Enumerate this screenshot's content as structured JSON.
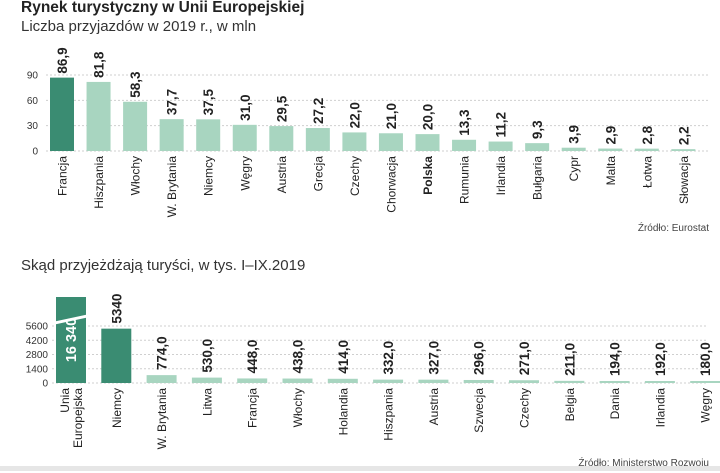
{
  "title": "Rynek turystyczny w Unii Europejskiej",
  "subtitle": "Liczba przyjazdów w 2019 r., w mln",
  "source1": "Źródło: Eurostat",
  "subtitle2": "Skąd przyjeżdżają turyści, w tys. I–IX.2019",
  "source2": "Źródło: Ministerstwo Rozwoju",
  "colors": {
    "highlight": "#3a8c72",
    "bar": "#a8d5c0",
    "grid": "#cfcfcf",
    "axis_text": "#333333"
  },
  "chart_data": [
    {
      "type": "bar",
      "categories": [
        "Francja",
        "Hiszpania",
        "Włochy",
        "W. Brytania",
        "Niemcy",
        "Węgry",
        "Austria",
        "Grecja",
        "Czechy",
        "Chorwacja",
        "Polska",
        "Rumunia",
        "Irlandia",
        "Bułgaria",
        "Cypr",
        "Malta",
        "Łotwa",
        "Słowacja"
      ],
      "values": [
        86.9,
        81.8,
        58.3,
        37.7,
        37.5,
        31.0,
        29.5,
        27.2,
        22.0,
        21.0,
        20.0,
        13.3,
        11.2,
        9.3,
        3.9,
        2.9,
        2.8,
        2.2
      ],
      "value_labels": [
        "86,9",
        "81,8",
        "58,3",
        "37,7",
        "37,5",
        "31,0",
        "29,5",
        "27,2",
        "22,0",
        "21,0",
        "20,0",
        "13,3",
        "11,2",
        "9,3",
        "3,9",
        "2,9",
        "2,8",
        "2,2"
      ],
      "yticks": [
        "90",
        "60",
        "30",
        "0"
      ],
      "ytick_values": [
        90,
        60,
        30,
        0
      ],
      "ylim": [
        0,
        90
      ],
      "highlight_index": 0,
      "bold_category": "Polska",
      "grid": true
    },
    {
      "type": "bar",
      "categories": [
        "Unia Europejska",
        "Niemcy",
        "W. Brytania",
        "Litwa",
        "Francja",
        "Włochy",
        "Holandia",
        "Hiszpania",
        "Austria",
        "Szwecja",
        "Czechy",
        "Belgia",
        "Dania",
        "Irlandia",
        "Węgry"
      ],
      "category_lines": [
        [
          "Unia",
          "Europejska"
        ],
        [
          "Niemcy"
        ],
        [
          "W. Brytania"
        ],
        [
          "Litwa"
        ],
        [
          "Francja"
        ],
        [
          "Włochy"
        ],
        [
          "Holandia"
        ],
        [
          "Hiszpania"
        ],
        [
          "Austria"
        ],
        [
          "Szwecja"
        ],
        [
          "Czechy"
        ],
        [
          "Belgia"
        ],
        [
          "Dania"
        ],
        [
          "Irlandia"
        ],
        [
          "Węgry"
        ]
      ],
      "values": [
        16340,
        5340,
        774.0,
        530.0,
        448.0,
        438.0,
        414.0,
        332.0,
        327.0,
        296.0,
        271.0,
        211.0,
        194.0,
        192.0,
        180.0
      ],
      "value_labels": [
        "16 340",
        "5340",
        "774,0",
        "530,0",
        "448,0",
        "438,0",
        "414,0",
        "332,0",
        "327,0",
        "296,0",
        "271,0",
        "211,0",
        "194,0",
        "192,0",
        "180,0"
      ],
      "yticks": [
        "5600",
        "4200",
        "2800",
        "1400",
        "0"
      ],
      "ytick_values": [
        5600,
        4200,
        2800,
        1400,
        0
      ],
      "ylim": [
        0,
        5600
      ],
      "axis_break": true,
      "highlight_indices": [
        0,
        1
      ],
      "grid": true
    }
  ]
}
